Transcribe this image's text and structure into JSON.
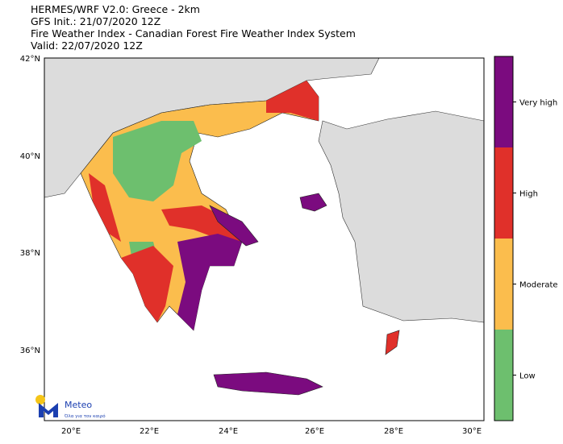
{
  "header": {
    "lines": [
      "HERMES/WRF V2.0: Greece - 2km",
      "GFS Init.: 21/07/2020 12Z",
      "Fire Weather Index - Canadian Forest Fire Weather Index System",
      "Valid: 22/07/2020 12Z"
    ]
  },
  "map": {
    "lat_labels": [
      "42°N",
      "40°N",
      "38°N",
      "36°N"
    ],
    "lon_labels": [
      "20°E",
      "22°E",
      "24°E",
      "26°E",
      "28°E",
      "30°E"
    ]
  },
  "colorbar": {
    "classes": [
      {
        "label": "Very high",
        "color": "#7b0b7f"
      },
      {
        "label": "High",
        "color": "#e0302a"
      },
      {
        "label": "Moderate",
        "color": "#fbbd4d"
      },
      {
        "label": "Low",
        "color": "#6dbf6e"
      }
    ]
  },
  "logo": {
    "name": "Meteo",
    "tagline": "Όλα για τον καιρό"
  }
}
